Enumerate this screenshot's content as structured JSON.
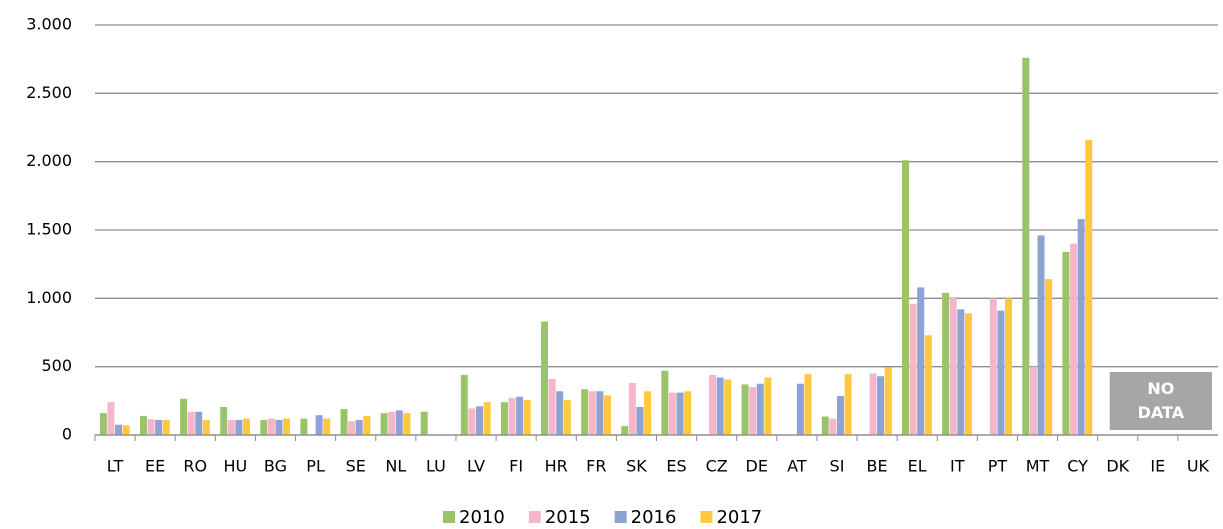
{
  "chart_data": {
    "type": "bar",
    "categories": [
      "LT",
      "EE",
      "RO",
      "HU",
      "BG",
      "PL",
      "SE",
      "NL",
      "LU",
      "LV",
      "FI",
      "HR",
      "FR",
      "SK",
      "ES",
      "CZ",
      "DE",
      "AT",
      "SI",
      "BE",
      "EL",
      "IT",
      "PT",
      "MT",
      "CY",
      "DK",
      "IE",
      "UK"
    ],
    "series": [
      {
        "name": "2010",
        "color": "#9bc46a",
        "values": [
          160,
          140,
          265,
          205,
          110,
          120,
          190,
          160,
          170,
          440,
          240,
          830,
          335,
          65,
          470,
          null,
          370,
          null,
          135,
          null,
          2010,
          1040,
          null,
          2760,
          1340,
          null,
          null,
          null
        ]
      },
      {
        "name": "2015",
        "color": "#f4b6c8",
        "values": [
          240,
          115,
          170,
          110,
          120,
          null,
          100,
          170,
          null,
          195,
          270,
          410,
          320,
          380,
          310,
          440,
          350,
          null,
          120,
          450,
          960,
          1010,
          1000,
          500,
          1400,
          null,
          null,
          null
        ]
      },
      {
        "name": "2016",
        "color": "#8ea2d4",
        "values": [
          75,
          110,
          170,
          110,
          110,
          145,
          110,
          180,
          null,
          210,
          280,
          320,
          320,
          205,
          310,
          420,
          375,
          375,
          285,
          430,
          1080,
          920,
          910,
          1460,
          1580,
          null,
          null,
          null
        ]
      },
      {
        "name": "2017",
        "color": "#ffc83d",
        "values": [
          70,
          110,
          110,
          120,
          120,
          120,
          140,
          160,
          null,
          240,
          255,
          255,
          290,
          320,
          320,
          405,
          420,
          445,
          445,
          495,
          730,
          890,
          1000,
          1140,
          2160,
          null,
          null,
          null
        ]
      }
    ],
    "ylim": [
      0,
      3000
    ],
    "yticks": [
      0,
      500,
      {
        "value": 1000,
        "label": "1.000"
      },
      {
        "value": 1500,
        "label": "1.500"
      },
      {
        "value": 2000,
        "label": "2.000"
      },
      {
        "value": 2500,
        "label": "2.500"
      },
      {
        "value": 3000,
        "label": "3.000"
      }
    ],
    "grid": true,
    "legend": "bottom",
    "annotation": "NO DATA"
  }
}
